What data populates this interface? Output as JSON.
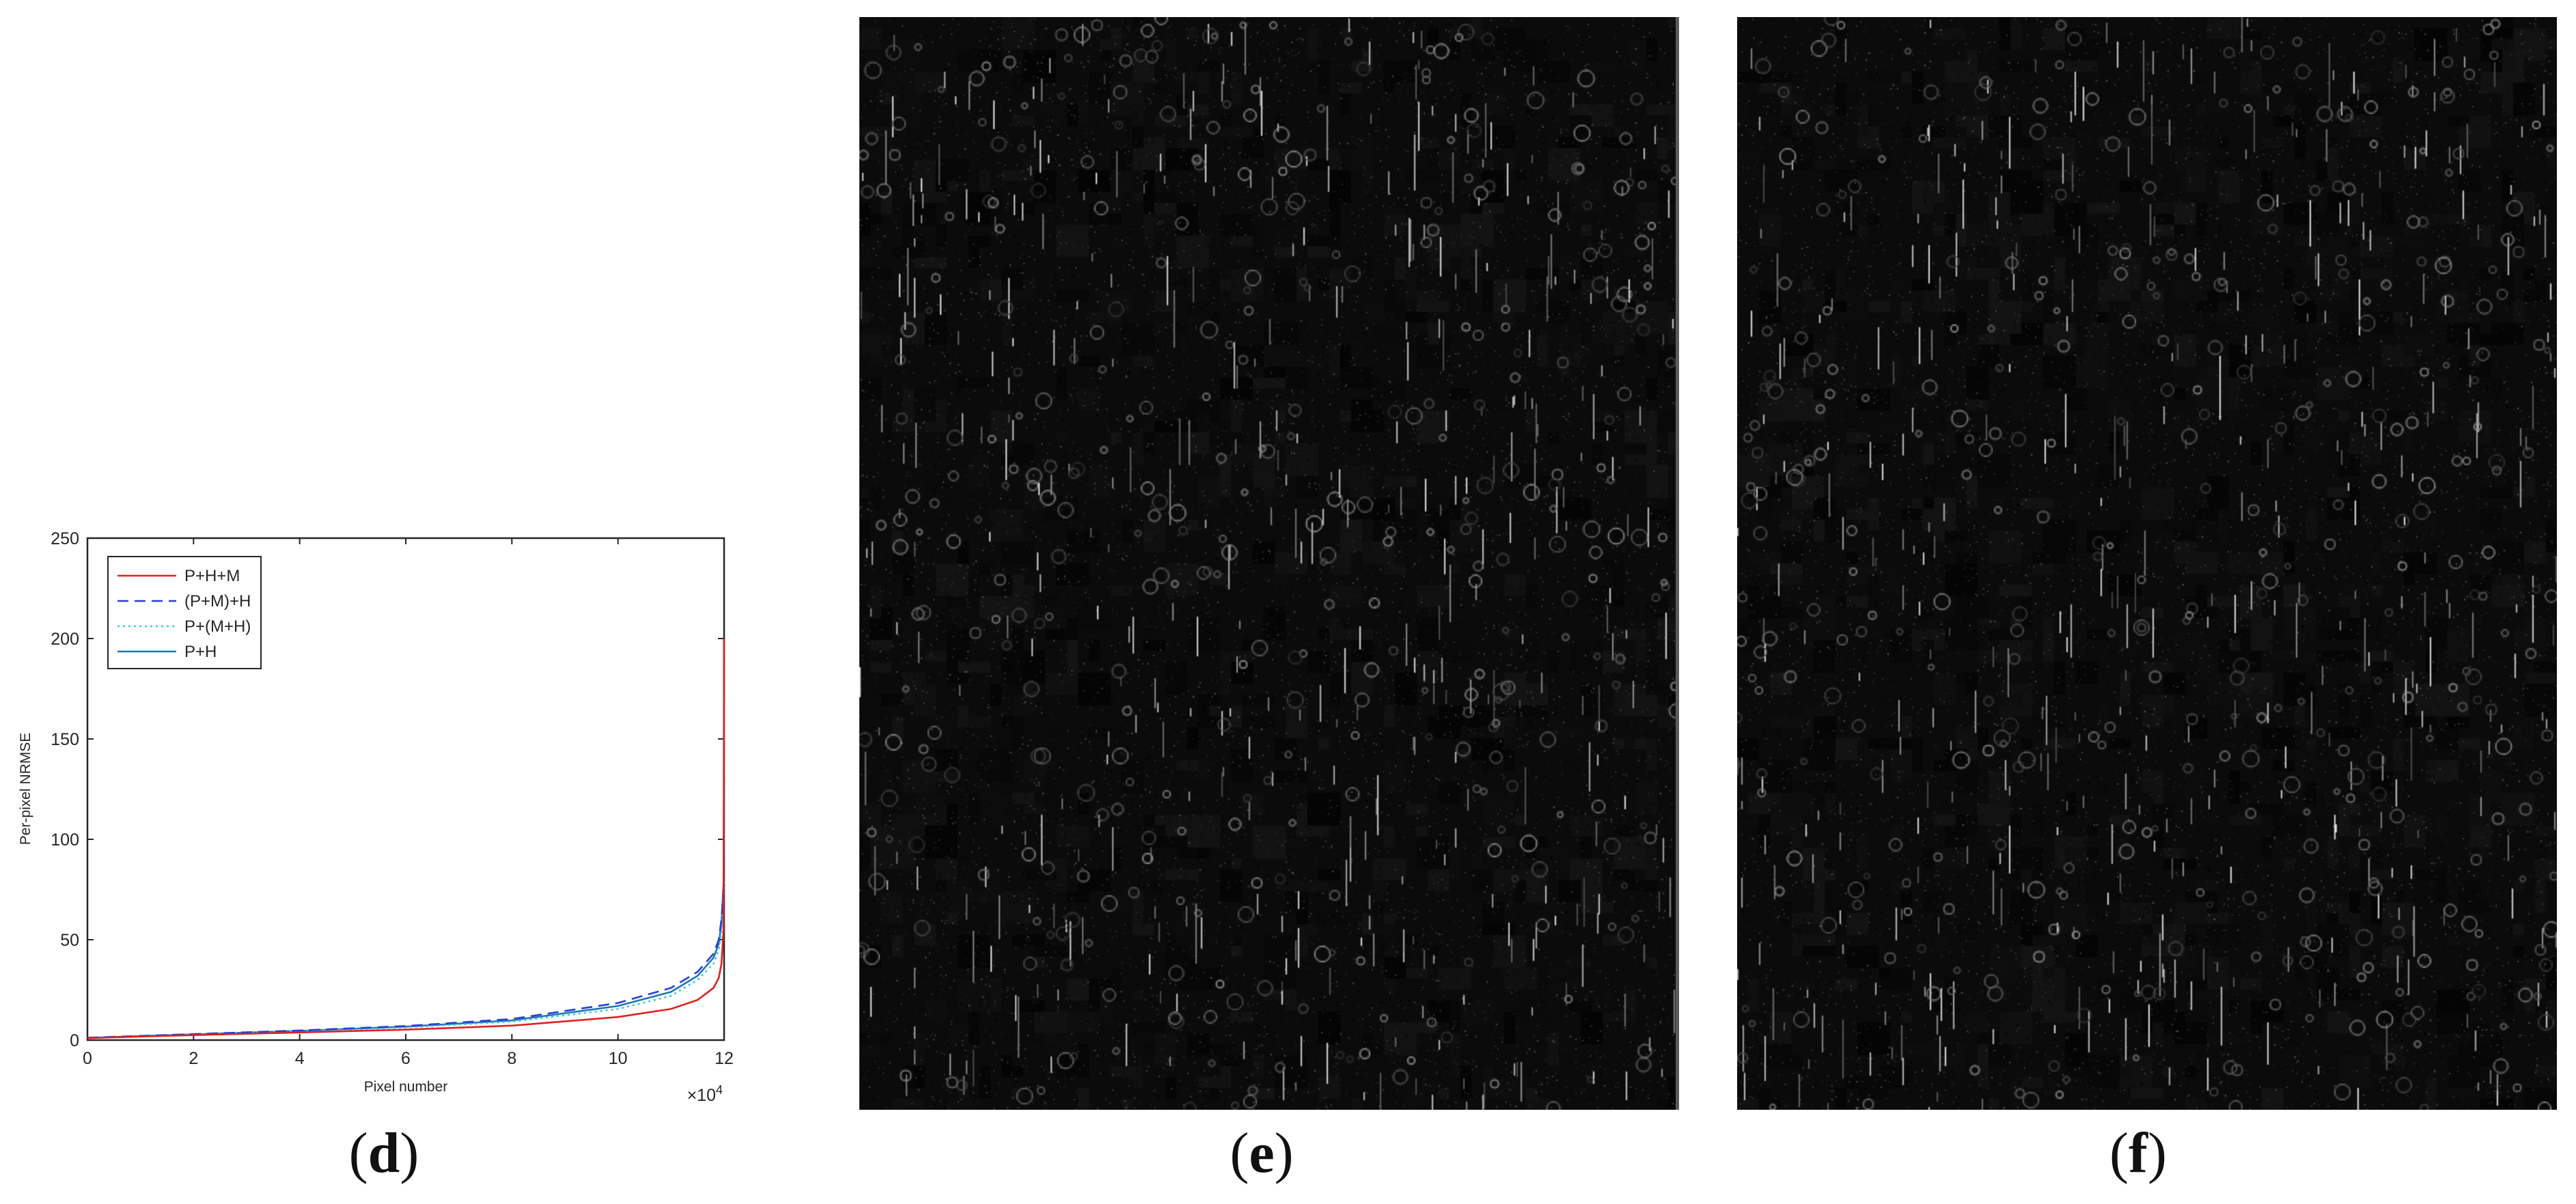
{
  "panels": {
    "d": {
      "label_open": "(",
      "label_letter": "d",
      "label_close": ")"
    },
    "e": {
      "label_open": "(",
      "label_letter": "e",
      "label_close": ")"
    },
    "f": {
      "label_open": "(",
      "label_letter": "f",
      "label_close": ")"
    }
  },
  "chart_data": {
    "type": "line",
    "title": "",
    "xlabel": "Pixel number",
    "ylabel": "Per-pixel NRMSE",
    "x_multiplier_label": "×10",
    "x_multiplier_exponent": "4",
    "xlim": [
      0,
      12
    ],
    "ylim": [
      0,
      250
    ],
    "xticks": [
      "0",
      "2",
      "4",
      "6",
      "8",
      "10",
      "12"
    ],
    "yticks": [
      "0",
      "50",
      "100",
      "150",
      "200",
      "250"
    ],
    "grid": false,
    "legend_position": "top-left",
    "series": [
      {
        "name": "P+H+M",
        "color": "#e02020",
        "style": "solid",
        "x": [
          0,
          2,
          4,
          6,
          8,
          10,
          11,
          11.5,
          11.8,
          11.9,
          11.95,
          11.99,
          12
        ],
        "y": [
          1,
          2.5,
          3.8,
          5.2,
          7.2,
          11.5,
          15.5,
          20,
          26,
          31,
          38,
          55,
          200
        ]
      },
      {
        "name": "(P+M)+H",
        "color": "#2a3fd8",
        "style": "dashed",
        "x": [
          0,
          2,
          4,
          6,
          8,
          10,
          11,
          11.5,
          11.8,
          11.9,
          11.95,
          11.99,
          12
        ],
        "y": [
          1.2,
          3.0,
          4.8,
          7.0,
          10.5,
          18.5,
          26,
          34,
          43,
          50,
          60,
          75,
          90
        ]
      },
      {
        "name": "P+(M+H)",
        "color": "#38c8d8",
        "style": "dotted",
        "x": [
          0,
          2,
          4,
          6,
          8,
          10,
          11,
          11.5,
          11.8,
          11.9,
          11.95,
          11.99,
          12
        ],
        "y": [
          1.1,
          2.8,
          4.4,
          6.3,
          9.2,
          15.5,
          22,
          30,
          38,
          45,
          54,
          68,
          80
        ]
      },
      {
        "name": "P+H",
        "color": "#1f77b4",
        "style": "solid",
        "x": [
          0,
          2,
          4,
          6,
          8,
          10,
          11,
          11.5,
          11.8,
          11.9,
          11.95,
          11.99,
          12
        ],
        "y": [
          1.1,
          2.9,
          4.6,
          6.7,
          9.8,
          17,
          24,
          32,
          41,
          48,
          58,
          78,
          128
        ]
      }
    ]
  }
}
